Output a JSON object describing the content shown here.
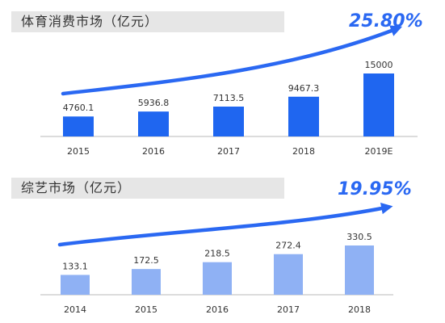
{
  "colors": {
    "bar1": "#1f66f0",
    "bar2": "#8fb1f4",
    "arrow": "#2a68f2",
    "axis": "#b8b8b8",
    "text": "#333333"
  },
  "chart_data": [
    {
      "type": "bar",
      "title": "体育消费市场（亿元）",
      "annotation": "25.80%",
      "categories": [
        "2015",
        "2016",
        "2017",
        "2018",
        "2019E"
      ],
      "values": [
        4760.1,
        5936.8,
        7113.5,
        9467.3,
        15000
      ],
      "value_labels": [
        "4760.1",
        "5936.8",
        "7113.5",
        "9467.3",
        "15000"
      ],
      "ylim": [
        0,
        15000
      ],
      "grid": false,
      "legend": "none"
    },
    {
      "type": "bar",
      "title": "综艺市场（亿元）",
      "annotation": "19.95%",
      "categories": [
        "2014",
        "2015",
        "2016",
        "2017",
        "2018"
      ],
      "values": [
        133.1,
        172.5,
        218.5,
        272.4,
        330.5
      ],
      "value_labels": [
        "133.1",
        "172.5",
        "218.5",
        "272.4",
        "330.5"
      ],
      "ylim": [
        0,
        330.5
      ],
      "grid": false,
      "legend": "none"
    }
  ]
}
